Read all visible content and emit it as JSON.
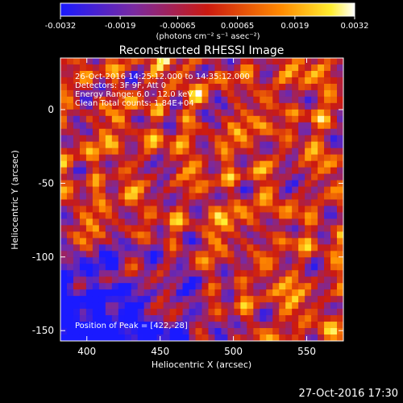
{
  "colorbar": {
    "ticks": [
      "-0.0032",
      "-0.0019",
      "-0.00065",
      "0.00065",
      "0.0019",
      "0.0032"
    ],
    "units_label": "(photons cm⁻² s⁻¹ asec⁻²)",
    "min": -0.0032,
    "max": 0.0032
  },
  "chart_data": {
    "type": "heatmap",
    "title": "Reconstructed RHESSI Image",
    "xlabel": "Heliocentric X (arcsec)",
    "ylabel": "Heliocentric Y (arcsec)",
    "xlim": [
      382,
      575
    ],
    "ylim": [
      -157,
      35
    ],
    "xticks": [
      400,
      450,
      500,
      550
    ],
    "yticks": [
      0,
      -50,
      -100,
      -150
    ],
    "colormap": "blue-purple-red-yellow-white",
    "annotations": {
      "time_range": "26-Oct-2016 14:25:12.000 to 14:35:12.000",
      "detectors": "Detectors: 3F 9F, Att 0",
      "energy": "Energy Range: 6.0 - 12.0 keV",
      "method": "Clean   Total counts: 1.84E+04",
      "peak": "Position of Peak = [422,-28]"
    },
    "peak": [
      422,
      -28
    ]
  },
  "timestamp": "27-Oct-2016 17:30"
}
